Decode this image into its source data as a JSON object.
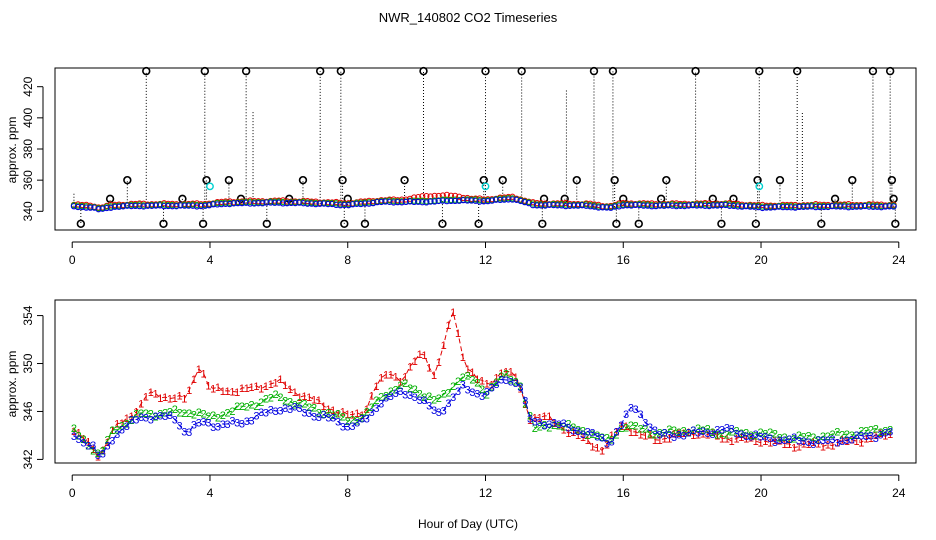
{
  "title": "NWR_140802  CO2 Timeseries",
  "chart_data": [
    {
      "type": "scatter",
      "name": "top",
      "title": "NWR_140802  CO2 Timeseries",
      "xlabel": "",
      "ylabel": "approx. ppm",
      "xlim": [
        -0.5,
        24.5
      ],
      "ylim": [
        328,
        432
      ],
      "xticks": [
        0,
        4,
        8,
        12,
        16,
        20,
        24
      ],
      "yticks": [
        340,
        360,
        380,
        400,
        420
      ],
      "colors": {
        "base": "#000000",
        "ch1": "#e00000",
        "ch2": "#00b000",
        "ch3": "#0000e0",
        "flag": "#00d0d0"
      },
      "baseline_knots": [
        [
          0,
          343
        ],
        [
          0.6,
          342.5
        ],
        [
          0.8,
          341
        ],
        [
          1.2,
          343
        ],
        [
          2,
          343.5
        ],
        [
          3.8,
          343.5
        ],
        [
          4.5,
          345
        ],
        [
          6,
          345.5
        ],
        [
          7,
          345
        ],
        [
          8,
          344
        ],
        [
          9,
          346
        ],
        [
          10.2,
          346
        ],
        [
          11.2,
          347
        ],
        [
          12,
          346.5
        ],
        [
          12.8,
          348
        ],
        [
          13.4,
          344
        ],
        [
          15,
          343.5
        ],
        [
          15.6,
          342
        ],
        [
          16,
          344
        ],
        [
          17,
          343.5
        ],
        [
          19,
          343.8
        ],
        [
          20,
          342.5
        ],
        [
          22,
          343
        ],
        [
          23.8,
          343
        ]
      ],
      "spikes": [
        [
          2.15,
          430
        ],
        [
          3.85,
          430
        ],
        [
          3.9,
          360
        ],
        [
          5.05,
          430
        ],
        [
          7.2,
          430
        ],
        [
          7.8,
          430
        ],
        [
          10.2,
          430
        ],
        [
          12.0,
          430
        ],
        [
          13.05,
          430
        ],
        [
          15.15,
          430
        ],
        [
          15.7,
          430
        ],
        [
          15.75,
          360
        ],
        [
          18.1,
          430
        ],
        [
          19.95,
          430
        ],
        [
          21.05,
          430
        ],
        [
          23.25,
          430
        ],
        [
          23.75,
          430
        ],
        [
          23.8,
          360
        ],
        [
          1.6,
          360
        ],
        [
          4.55,
          360
        ],
        [
          6.7,
          360
        ],
        [
          7.85,
          360
        ],
        [
          9.65,
          360
        ],
        [
          11.95,
          360
        ],
        [
          12.5,
          360
        ],
        [
          14.65,
          360
        ],
        [
          17.25,
          360
        ],
        [
          19.9,
          360
        ],
        [
          20.55,
          360
        ],
        [
          22.65,
          360
        ],
        [
          1.1,
          348
        ],
        [
          3.2,
          348
        ],
        [
          4.9,
          348
        ],
        [
          6.3,
          348
        ],
        [
          8.0,
          348
        ],
        [
          13.7,
          348
        ],
        [
          14.3,
          348
        ],
        [
          16.0,
          348
        ],
        [
          17.1,
          348
        ],
        [
          18.6,
          348
        ],
        [
          19.2,
          348
        ],
        [
          22.15,
          348
        ],
        [
          23.85,
          348
        ],
        [
          0.25,
          332
        ],
        [
          2.65,
          332
        ],
        [
          3.8,
          332
        ],
        [
          5.65,
          332
        ],
        [
          7.9,
          332
        ],
        [
          8.5,
          332
        ],
        [
          10.75,
          332
        ],
        [
          11.8,
          332
        ],
        [
          13.65,
          332
        ],
        [
          15.8,
          332
        ],
        [
          16.45,
          332
        ],
        [
          18.85,
          332
        ],
        [
          19.85,
          332
        ],
        [
          21.75,
          332
        ],
        [
          23.9,
          332
        ]
      ],
      "dotted_no_marker": [
        [
          14.35,
          418
        ],
        [
          21.2,
          404
        ],
        [
          5.25,
          404
        ],
        [
          0.05,
          352
        ]
      ],
      "flagged": [
        [
          4.0,
          356
        ],
        [
          12.0,
          356
        ],
        [
          19.95,
          356
        ]
      ]
    },
    {
      "type": "line",
      "name": "bottom",
      "xlabel": "Hour of Day (UTC)",
      "ylabel": "approx. ppm",
      "xlim": [
        -0.5,
        24.5
      ],
      "ylim": [
        341.7,
        355.3
      ],
      "xticks": [
        0,
        4,
        8,
        12,
        16,
        20,
        24
      ],
      "yticks": [
        342,
        346,
        350,
        354
      ],
      "series": [
        {
          "name": "1",
          "color": "#e00000",
          "knots": [
            [
              0,
              344.5
            ],
            [
              0.6,
              343
            ],
            [
              0.8,
              342.3
            ],
            [
              1.2,
              344.5
            ],
            [
              2,
              346.5
            ],
            [
              2.2,
              347.5
            ],
            [
              3.3,
              347
            ],
            [
              3.7,
              350
            ],
            [
              4,
              347.8
            ],
            [
              5,
              347.8
            ],
            [
              6,
              348.5
            ],
            [
              6.5,
              347.6
            ],
            [
              7.5,
              346.3
            ],
            [
              8,
              345.6
            ],
            [
              8.5,
              346
            ],
            [
              8.8,
              348
            ],
            [
              9.2,
              349.3
            ],
            [
              9.6,
              348.6
            ],
            [
              9.9,
              350
            ],
            [
              10.2,
              351
            ],
            [
              10.5,
              349
            ],
            [
              10.8,
              351.5
            ],
            [
              11.05,
              354.5
            ],
            [
              11.4,
              350
            ],
            [
              11.8,
              348.5
            ],
            [
              12.1,
              348.2
            ],
            [
              12.5,
              349.5
            ],
            [
              12.9,
              348.8
            ],
            [
              13.3,
              345.5
            ],
            [
              13.8,
              345.5
            ],
            [
              14.5,
              344.2
            ],
            [
              15,
              343.5
            ],
            [
              15.4,
              342.8
            ],
            [
              16,
              345
            ],
            [
              16.5,
              344
            ],
            [
              17,
              343.7
            ],
            [
              18,
              344.3
            ],
            [
              19,
              343.8
            ],
            [
              20,
              343.6
            ],
            [
              21,
              343.2
            ],
            [
              22,
              343.3
            ],
            [
              23,
              343.7
            ],
            [
              23.8,
              344.2
            ]
          ]
        },
        {
          "name": "2",
          "color": "#00b000",
          "knots": [
            [
              0,
              344.5
            ],
            [
              0.6,
              343
            ],
            [
              0.8,
              342.2
            ],
            [
              1.2,
              344.5
            ],
            [
              2,
              345.8
            ],
            [
              3.5,
              346
            ],
            [
              4,
              345.5
            ],
            [
              5,
              346.4
            ],
            [
              6,
              347.3
            ],
            [
              6.5,
              346.7
            ],
            [
              7.5,
              345.8
            ],
            [
              8,
              345.3
            ],
            [
              8.5,
              345.6
            ],
            [
              9,
              347.4
            ],
            [
              9.6,
              348.2
            ],
            [
              10,
              347.8
            ],
            [
              10.6,
              346.8
            ],
            [
              11,
              348
            ],
            [
              11.3,
              349
            ],
            [
              11.7,
              348.5
            ],
            [
              12,
              347.6
            ],
            [
              12.5,
              349
            ],
            [
              13,
              348.4
            ],
            [
              13.4,
              344.5
            ],
            [
              14,
              345
            ],
            [
              15,
              344.3
            ],
            [
              15.6,
              343.5
            ],
            [
              16,
              344.9
            ],
            [
              17,
              344.2
            ],
            [
              18,
              344.5
            ],
            [
              19,
              344.2
            ],
            [
              20,
              344.2
            ],
            [
              21,
              343.8
            ],
            [
              22,
              344
            ],
            [
              23,
              344.3
            ],
            [
              23.8,
              344.6
            ]
          ]
        },
        {
          "name": "3",
          "color": "#0000e0",
          "knots": [
            [
              0,
              344.2
            ],
            [
              0.6,
              343
            ],
            [
              0.8,
              342
            ],
            [
              1.2,
              344
            ],
            [
              2,
              345.6
            ],
            [
              3,
              345.5
            ],
            [
              3.3,
              344.2
            ],
            [
              3.8,
              345.2
            ],
            [
              4.3,
              344.8
            ],
            [
              5,
              345.2
            ],
            [
              6,
              346.3
            ],
            [
              6.5,
              346.2
            ],
            [
              7.5,
              345.4
            ],
            [
              8,
              344.8
            ],
            [
              8.5,
              345.2
            ],
            [
              9,
              347
            ],
            [
              9.6,
              347.6
            ],
            [
              10,
              347.3
            ],
            [
              10.6,
              345.8
            ],
            [
              11,
              347
            ],
            [
              11.3,
              348
            ],
            [
              11.7,
              347.6
            ],
            [
              12,
              347.5
            ],
            [
              12.6,
              348.8
            ],
            [
              13,
              348.3
            ],
            [
              13.3,
              345.2
            ],
            [
              14,
              345
            ],
            [
              15,
              344.2
            ],
            [
              15.6,
              343.4
            ],
            [
              16,
              345.2
            ],
            [
              16.3,
              346.5
            ],
            [
              17,
              344
            ],
            [
              18,
              344.2
            ],
            [
              19,
              344.5
            ],
            [
              20,
              343.8
            ],
            [
              21,
              343.6
            ],
            [
              22,
              343.5
            ],
            [
              23,
              343.9
            ],
            [
              23.8,
              344.3
            ]
          ]
        }
      ]
    }
  ]
}
